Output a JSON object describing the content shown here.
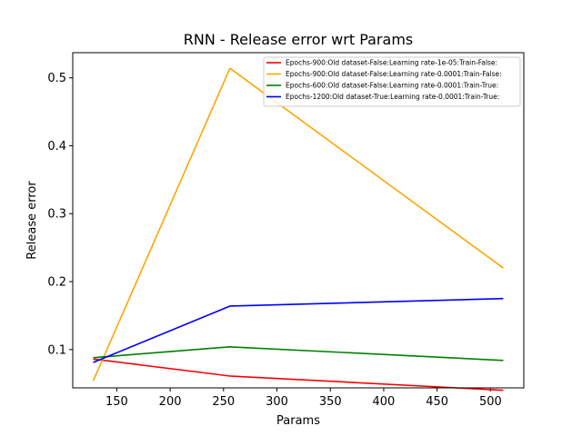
{
  "chart_data": {
    "type": "line",
    "title": "RNN - Release error wrt Params",
    "xlabel": "Params",
    "ylabel": "Release error",
    "xlim": [
      108.8,
      531.2
    ],
    "ylim": [
      0.0436,
      0.537
    ],
    "x_ticks": [
      150,
      200,
      250,
      300,
      350,
      400,
      450,
      500
    ],
    "y_ticks": [
      0.1,
      0.2,
      0.3,
      0.4,
      0.5
    ],
    "grid": false,
    "legend_position": "top-right",
    "series": [
      {
        "name": "Epochs-900:Old dataset-False:Learning rate-1e-05:Train-False:",
        "color": "#ff0000",
        "x": [
          128,
          256,
          512
        ],
        "y": [
          0.086,
          0.061,
          0.04
        ]
      },
      {
        "name": "Epochs-900:Old dataset-False:Learning rate-0.0001:Train-False:",
        "color": "#ffa500",
        "x": [
          128,
          256,
          512
        ],
        "y": [
          0.054,
          0.514,
          0.22
        ]
      },
      {
        "name": "Epochs-600:Old dataset-False:Learning rate-0.0001:Train-True:",
        "color": "#008000",
        "x": [
          128,
          256,
          512
        ],
        "y": [
          0.088,
          0.104,
          0.084
        ]
      },
      {
        "name": "Epochs-1200:Old dataset-True:Learning rate-0.0001:Train-True:",
        "color": "#0000ff",
        "x": [
          128,
          256,
          512
        ],
        "y": [
          0.081,
          0.164,
          0.175
        ]
      }
    ]
  }
}
